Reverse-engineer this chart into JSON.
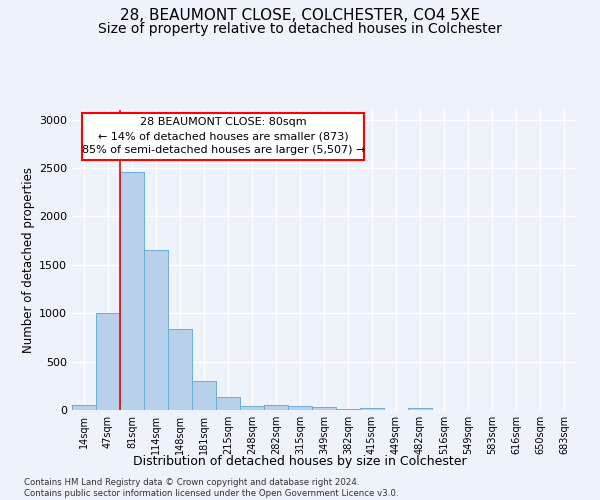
{
  "title1": "28, BEAUMONT CLOSE, COLCHESTER, CO4 5XE",
  "title2": "Size of property relative to detached houses in Colchester",
  "xlabel": "Distribution of detached houses by size in Colchester",
  "ylabel": "Number of detached properties",
  "bar_labels": [
    "14sqm",
    "47sqm",
    "81sqm",
    "114sqm",
    "148sqm",
    "181sqm",
    "215sqm",
    "248sqm",
    "282sqm",
    "315sqm",
    "349sqm",
    "382sqm",
    "415sqm",
    "449sqm",
    "482sqm",
    "516sqm",
    "549sqm",
    "583sqm",
    "616sqm",
    "650sqm",
    "683sqm"
  ],
  "bar_values": [
    55,
    1000,
    2460,
    1650,
    840,
    300,
    135,
    45,
    50,
    40,
    30,
    15,
    25,
    0,
    25,
    0,
    0,
    0,
    0,
    0,
    0
  ],
  "bar_color": "#b8d0ea",
  "bar_edge_color": "#6aaed6",
  "vline_x_index": 2,
  "annotation_box_text": "28 BEAUMONT CLOSE: 80sqm\n← 14% of detached houses are smaller (873)\n85% of semi-detached houses are larger (5,507) →",
  "ylim": [
    0,
    3100
  ],
  "footnote": "Contains HM Land Registry data © Crown copyright and database right 2024.\nContains public sector information licensed under the Open Government Licence v3.0.",
  "background_color": "#edf2fb",
  "grid_color": "#ffffff",
  "title1_fontsize": 11,
  "title2_fontsize": 10,
  "xlabel_fontsize": 9,
  "ylabel_fontsize": 8.5
}
